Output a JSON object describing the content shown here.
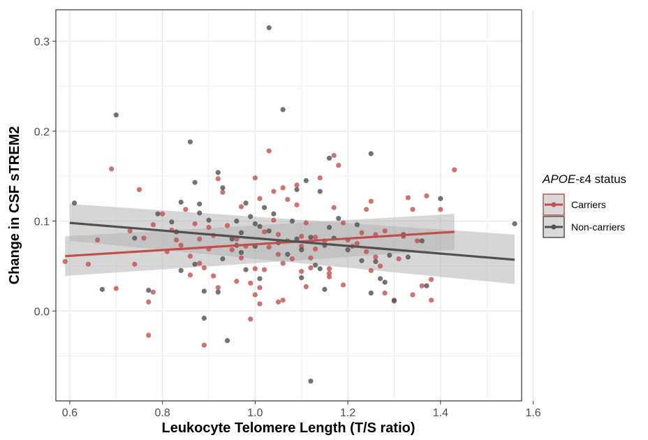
{
  "chart_data": {
    "type": "scatter",
    "xlabel": "Leukocyte Telomere Length (T/S ratio)",
    "ylabel": "Change in CSF sTREM2",
    "xlim": [
      0.57,
      1.575
    ],
    "ylim": [
      -0.1,
      0.335
    ],
    "x_ticks": [
      0.6,
      0.8,
      1.0,
      1.2,
      1.4,
      1.6
    ],
    "x_tick_labels": [
      "0.6",
      "0.8",
      "1.0",
      "1.2",
      "1.4",
      "1.6"
    ],
    "y_ticks": [
      0.0,
      0.1,
      0.2,
      0.3
    ],
    "y_tick_labels": [
      "0.0",
      "0.1",
      "0.2",
      "0.3"
    ],
    "grid": true,
    "legend": {
      "title_italic": "APOE",
      "title_rest": "-ε4 status",
      "position": "right",
      "entries": [
        "Carriers",
        "Non-carriers"
      ]
    },
    "colors": {
      "Carriers": "#c0504d",
      "Non-carriers": "#505050",
      "ci_band": "#b4b4b4",
      "grid": "#ebebeb",
      "border": "#333333"
    },
    "series": [
      {
        "name": "Carriers",
        "fit": {
          "x": [
            0.59,
            1.43
          ],
          "y": [
            0.061,
            0.088
          ],
          "ci_start": [
            0.039,
            0.083
          ],
          "ci_end": [
            0.068,
            0.108
          ]
        },
        "points": [
          [
            0.59,
            0.055
          ],
          [
            0.64,
            0.052
          ],
          [
            0.66,
            0.079
          ],
          [
            0.69,
            0.158
          ],
          [
            0.7,
            0.025
          ],
          [
            0.73,
            0.089
          ],
          [
            0.74,
            0.052
          ],
          [
            0.75,
            0.135
          ],
          [
            0.76,
            0.081
          ],
          [
            0.77,
            0.01
          ],
          [
            0.77,
            -0.027
          ],
          [
            0.78,
            0.021
          ],
          [
            0.78,
            0.096
          ],
          [
            0.8,
            0.108
          ],
          [
            0.81,
            0.066
          ],
          [
            0.82,
            0.09
          ],
          [
            0.83,
            0.079
          ],
          [
            0.84,
            0.073
          ],
          [
            0.85,
            0.113
          ],
          [
            0.86,
            0.061
          ],
          [
            0.86,
            0.04
          ],
          [
            0.87,
            0.097
          ],
          [
            0.88,
            0.08
          ],
          [
            0.88,
            0.053
          ],
          [
            0.89,
            -0.038
          ],
          [
            0.89,
            0.048
          ],
          [
            0.9,
            0.069
          ],
          [
            0.9,
            0.093
          ],
          [
            0.91,
            0.039
          ],
          [
            0.91,
            0.084
          ],
          [
            0.92,
            0.026
          ],
          [
            0.92,
            0.147
          ],
          [
            0.93,
            0.132
          ],
          [
            0.94,
            0.095
          ],
          [
            0.95,
            0.068
          ],
          [
            0.96,
            0.033
          ],
          [
            0.96,
            0.08
          ],
          [
            0.97,
            0.116
          ],
          [
            0.97,
            0.059
          ],
          [
            0.98,
            0.072
          ],
          [
            0.99,
            -0.009
          ],
          [
            0.99,
            0.031
          ],
          [
            1.0,
            0.047
          ],
          [
            1.0,
            0.148
          ],
          [
            1.0,
            0.018
          ],
          [
            1.01,
            0.026
          ],
          [
            1.01,
            0.008
          ],
          [
            1.01,
            0.125
          ],
          [
            1.02,
            0.088
          ],
          [
            1.02,
            0.046
          ],
          [
            1.03,
            0.178
          ],
          [
            1.03,
            0.071
          ],
          [
            1.04,
            0.133
          ],
          [
            1.04,
            0.101
          ],
          [
            1.05,
            0.063
          ],
          [
            1.05,
            0.01
          ],
          [
            1.05,
            0.085
          ],
          [
            1.06,
            0.137
          ],
          [
            1.06,
            0.012
          ],
          [
            1.06,
            0.053
          ],
          [
            1.07,
            0.124
          ],
          [
            1.07,
            0.078
          ],
          [
            1.08,
            0.058
          ],
          [
            1.09,
            0.118
          ],
          [
            1.09,
            0.14
          ],
          [
            1.1,
            0.072
          ],
          [
            1.1,
            0.083
          ],
          [
            1.1,
            0.044
          ],
          [
            1.11,
            0.098
          ],
          [
            1.11,
            0.027
          ],
          [
            1.12,
            0.059
          ],
          [
            1.12,
            0.048
          ],
          [
            1.13,
            0.069
          ],
          [
            1.13,
            0.082
          ],
          [
            1.14,
            0.148
          ],
          [
            1.15,
            0.078
          ],
          [
            1.16,
            0.038
          ],
          [
            1.16,
            0.042
          ],
          [
            1.16,
            0.047
          ],
          [
            1.17,
            0.173
          ],
          [
            1.17,
            0.115
          ],
          [
            1.18,
            0.162
          ],
          [
            1.19,
            0.098
          ],
          [
            1.19,
            0.029
          ],
          [
            1.2,
            0.079
          ],
          [
            1.21,
            0.072
          ],
          [
            1.22,
            0.075
          ],
          [
            1.23,
            0.087
          ],
          [
            1.24,
            0.066
          ],
          [
            1.24,
            0.113
          ],
          [
            1.25,
            0.122
          ],
          [
            1.25,
            0.045
          ],
          [
            1.26,
            0.06
          ],
          [
            1.26,
            0.085
          ],
          [
            1.27,
            0.05
          ],
          [
            1.28,
            0.02
          ],
          [
            1.28,
            0.089
          ],
          [
            1.3,
            0.011
          ],
          [
            1.31,
            0.058
          ],
          [
            1.32,
            0.083
          ],
          [
            1.33,
            0.126
          ],
          [
            1.34,
            0.018
          ],
          [
            1.34,
            0.113
          ],
          [
            1.35,
            0.078
          ],
          [
            1.36,
            0.028
          ],
          [
            1.37,
            0.128
          ],
          [
            1.38,
            0.035
          ],
          [
            1.38,
            0.012
          ],
          [
            1.4,
            0.113
          ],
          [
            1.43,
            0.157
          ]
        ]
      },
      {
        "name": "Non-carriers",
        "fit": {
          "x": [
            0.6,
            1.56
          ],
          "y": [
            0.098,
            0.057
          ],
          "ci_start": [
            0.078,
            0.119
          ],
          "ci_end": [
            0.03,
            0.085
          ]
        },
        "points": [
          [
            0.61,
            0.12
          ],
          [
            0.67,
            0.024
          ],
          [
            0.7,
            0.218
          ],
          [
            0.74,
            0.081
          ],
          [
            0.77,
            0.023
          ],
          [
            0.79,
            0.108
          ],
          [
            0.82,
            0.099
          ],
          [
            0.83,
            0.088
          ],
          [
            0.84,
            0.045
          ],
          [
            0.84,
            0.121
          ],
          [
            0.86,
            0.188
          ],
          [
            0.87,
            0.143
          ],
          [
            0.87,
            0.052
          ],
          [
            0.88,
            0.119
          ],
          [
            0.88,
            0.109
          ],
          [
            0.89,
            -0.008
          ],
          [
            0.89,
            0.022
          ],
          [
            0.9,
            0.101
          ],
          [
            0.92,
            0.154
          ],
          [
            0.92,
            0.021
          ],
          [
            0.93,
            0.137
          ],
          [
            0.93,
            0.058
          ],
          [
            0.94,
            -0.033
          ],
          [
            0.95,
            0.08
          ],
          [
            0.96,
            0.073
          ],
          [
            0.96,
            0.1
          ],
          [
            0.97,
            0.065
          ],
          [
            0.97,
            0.087
          ],
          [
            0.98,
            0.12
          ],
          [
            0.98,
            0.046
          ],
          [
            0.99,
            0.105
          ],
          [
            1.0,
            0.097
          ],
          [
            1.0,
            0.072
          ],
          [
            1.01,
            0.036
          ],
          [
            1.01,
            0.094
          ],
          [
            1.02,
            0.115
          ],
          [
            1.03,
            0.315
          ],
          [
            1.03,
            0.089
          ],
          [
            1.04,
            0.108
          ],
          [
            1.05,
            0.076
          ],
          [
            1.06,
            0.224
          ],
          [
            1.07,
            0.063
          ],
          [
            1.08,
            0.1
          ],
          [
            1.09,
            0.135
          ],
          [
            1.09,
            0.08
          ],
          [
            1.1,
            0.068
          ],
          [
            1.1,
            0.037
          ],
          [
            1.11,
            0.145
          ],
          [
            1.12,
            -0.078
          ],
          [
            1.12,
            0.082
          ],
          [
            1.13,
            0.051
          ],
          [
            1.14,
            0.133
          ],
          [
            1.14,
            0.047
          ],
          [
            1.15,
            0.073
          ],
          [
            1.15,
            0.024
          ],
          [
            1.16,
            0.17
          ],
          [
            1.16,
            0.093
          ],
          [
            1.17,
            0.081
          ],
          [
            1.18,
            0.103
          ],
          [
            1.2,
            0.068
          ],
          [
            1.22,
            0.096
          ],
          [
            1.23,
            0.056
          ],
          [
            1.25,
            0.02
          ],
          [
            1.25,
            0.175
          ],
          [
            1.26,
            0.055
          ],
          [
            1.27,
            0.036
          ],
          [
            1.28,
            0.032
          ],
          [
            1.29,
            0.062
          ],
          [
            1.3,
            0.012
          ],
          [
            1.32,
            0.085
          ],
          [
            1.33,
            0.06
          ],
          [
            1.36,
            0.078
          ],
          [
            1.37,
            0.028
          ],
          [
            1.4,
            0.125
          ],
          [
            1.56,
            0.097
          ]
        ]
      }
    ]
  }
}
